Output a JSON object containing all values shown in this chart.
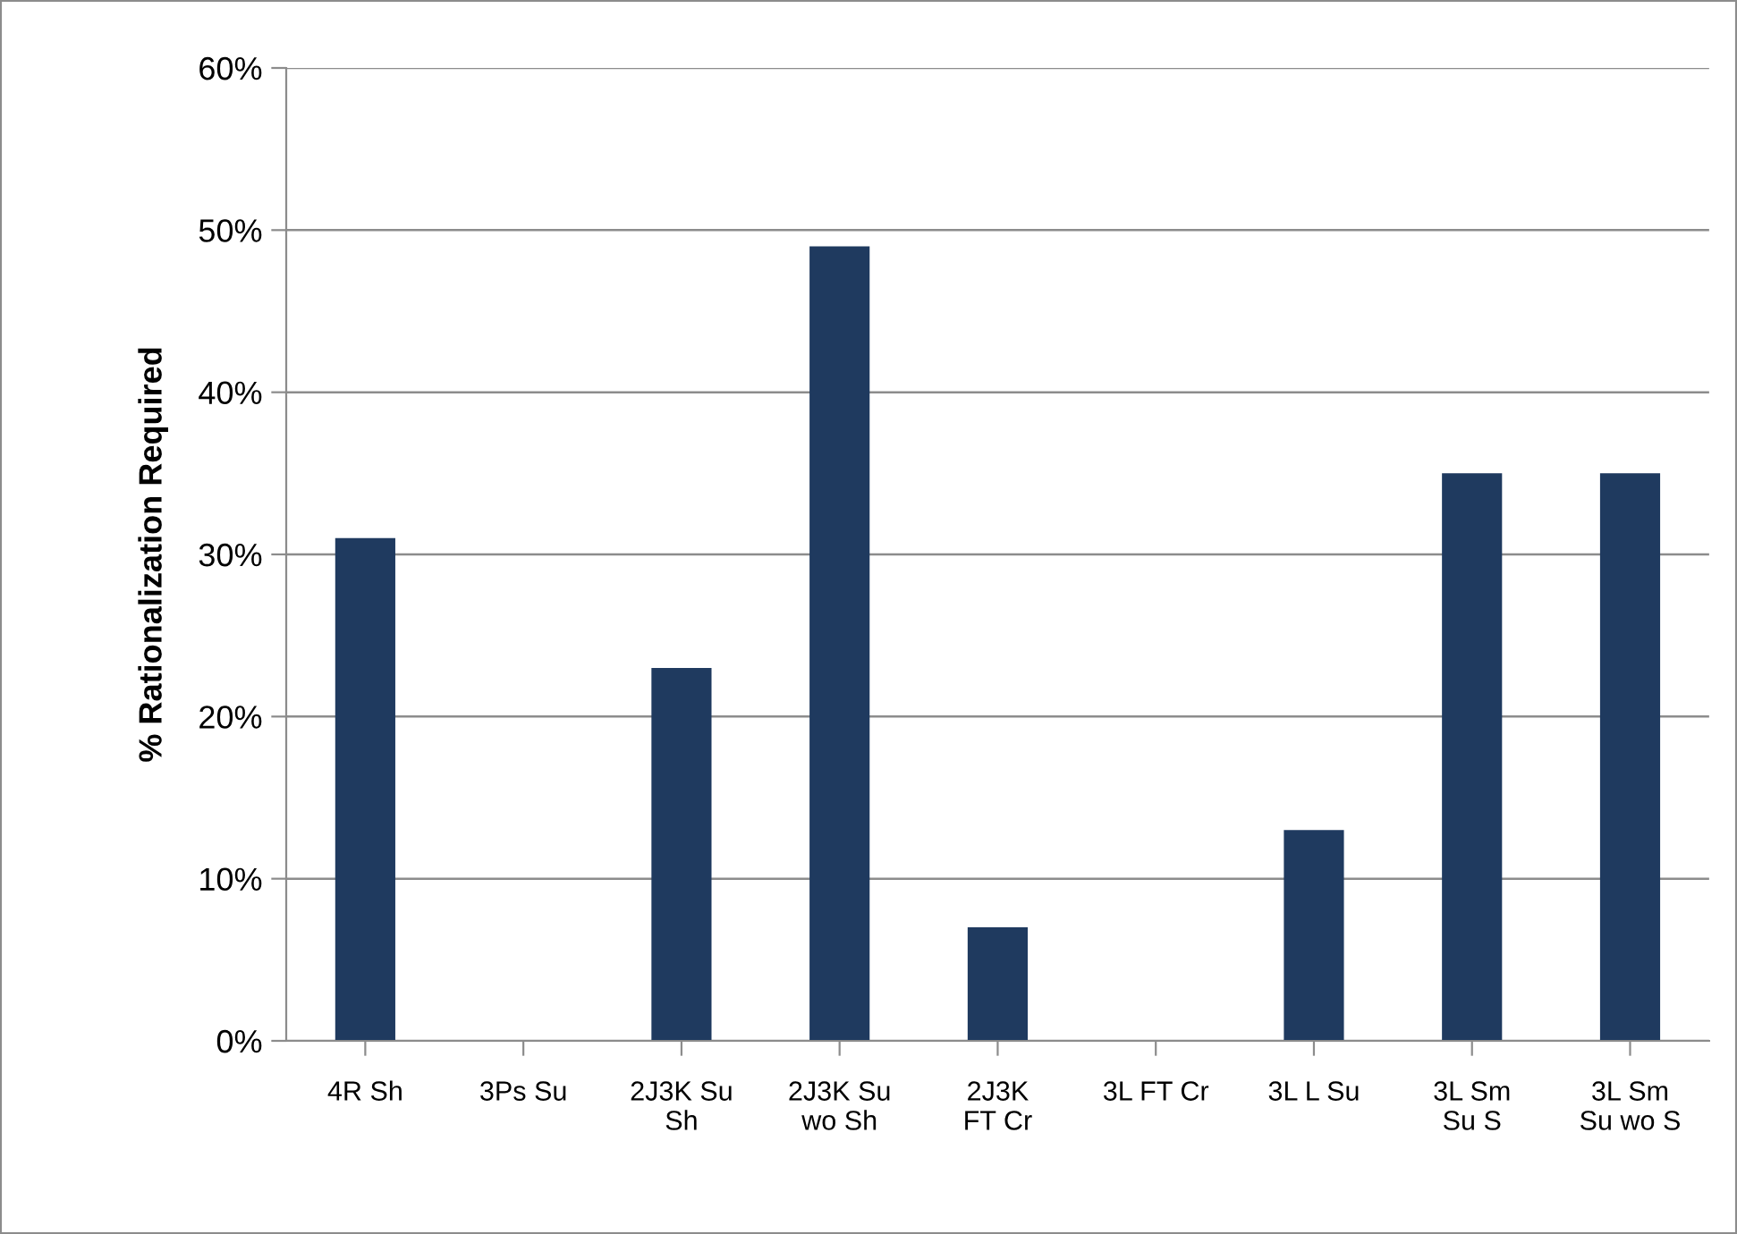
{
  "chart_data": {
    "type": "bar",
    "ylabel": "% Rationalization Required",
    "categories": [
      "4R Sh",
      "3Ps Su",
      "2J3K Su\nSh",
      "2J3K Su\nwo Sh",
      "2J3K\nFT Cr",
      "3L FT Cr",
      "3L L Su",
      "3L Sm\nSu S",
      "3L Sm\nSu wo S"
    ],
    "values": [
      31,
      0,
      23,
      49,
      7,
      0,
      13,
      35,
      35
    ],
    "color": "#1f3a5f",
    "ylim": [
      0,
      60
    ],
    "yticks": [
      {
        "value": 0,
        "label": "0%"
      },
      {
        "value": 10,
        "label": "10%"
      },
      {
        "value": 20,
        "label": "20%"
      },
      {
        "value": 30,
        "label": "30%"
      },
      {
        "value": 40,
        "label": "40%"
      },
      {
        "value": 50,
        "label": "50%"
      },
      {
        "value": 60,
        "label": "60%"
      }
    ],
    "grid": "y",
    "legend": false
  }
}
